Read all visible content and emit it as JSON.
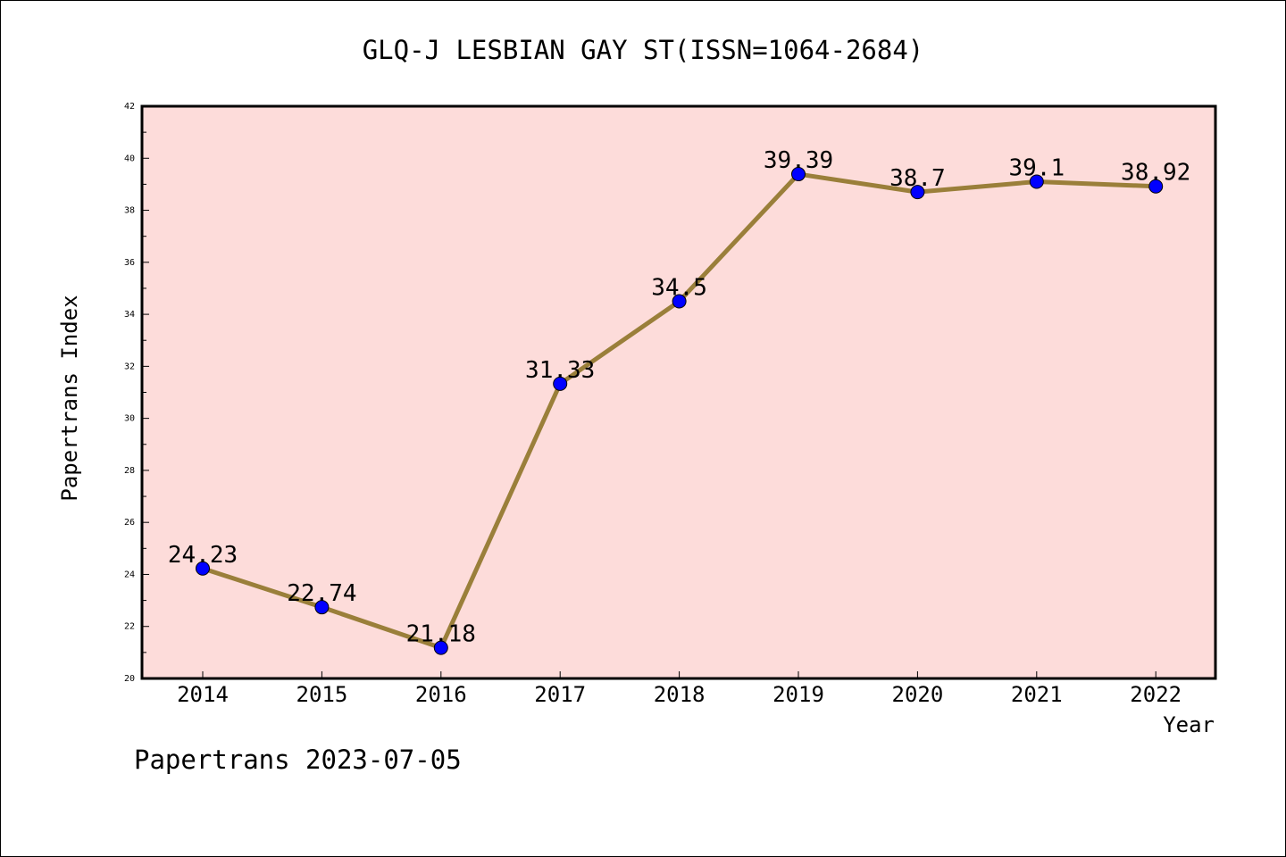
{
  "footer": {
    "text": "Papertrans 2023-07-05"
  },
  "chart_data": {
    "type": "line",
    "title": "GLQ-J LESBIAN GAY ST(ISSN=1064-2684)",
    "xlabel": "Year",
    "ylabel": "Papertrans Index",
    "categories": [
      "2014",
      "2015",
      "2016",
      "2017",
      "2018",
      "2019",
      "2020",
      "2021",
      "2022"
    ],
    "series": [
      {
        "values": [
          24.23,
          22.74,
          21.18,
          31.33,
          34.5,
          39.39,
          38.7,
          39.1,
          38.92
        ],
        "labels": [
          "24.23",
          "22.74",
          "21.18",
          "31.33",
          "34.5",
          "39.39",
          "38.7",
          "39.1",
          "38.92"
        ]
      }
    ],
    "ylim": [
      20,
      42
    ],
    "yticks": [
      "20",
      "22",
      "24",
      "26",
      "28",
      "30",
      "32",
      "34",
      "36",
      "38",
      "40",
      "42"
    ],
    "grid": false,
    "legend": "none",
    "colors": {
      "plot_background": "#FDDCDA",
      "line": "#9A7F3A",
      "marker": "#0000FF",
      "axis": "#000000"
    }
  }
}
